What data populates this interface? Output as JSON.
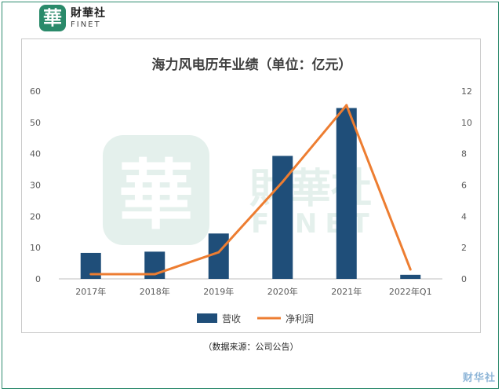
{
  "brand": {
    "logo_char": "華",
    "name_cn": "財華社",
    "name_en": "FINET"
  },
  "source_note": "（数据来源：公司公告）",
  "footer_watermark": "财华社",
  "colors": {
    "bar": "#1f4e79",
    "line": "#ed7d31",
    "grid": "#d9d9d9",
    "frame": "#2e8b6e"
  },
  "chart_data": {
    "type": "bar",
    "title": "海力风电历年业绩（单位：亿元）",
    "categories": [
      "2017年",
      "2018年",
      "2019年",
      "2020年",
      "2021年",
      "2022年Q1"
    ],
    "series": [
      {
        "name": "营收",
        "type": "bar",
        "axis": "left",
        "values": [
          8.3,
          8.7,
          14.5,
          39.3,
          54.6,
          1.3
        ]
      },
      {
        "name": "净利润",
        "type": "line",
        "axis": "right",
        "values": [
          0.3,
          0.3,
          1.7,
          6.2,
          11.1,
          0.6
        ]
      }
    ],
    "y_left": {
      "ylim": [
        0,
        60
      ],
      "ticks": [
        0,
        10,
        20,
        30,
        40,
        50,
        60
      ]
    },
    "y_right": {
      "ylim": [
        0,
        12
      ],
      "ticks": [
        0,
        2,
        4,
        6,
        8,
        10,
        12
      ]
    },
    "grid": false,
    "legend_position": "bottom"
  }
}
